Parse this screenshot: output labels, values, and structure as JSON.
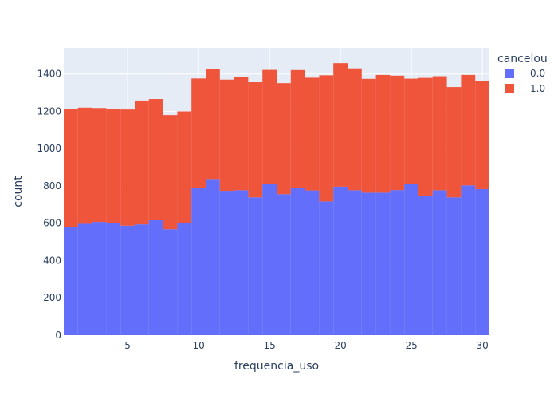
{
  "chart_data": {
    "type": "bar",
    "barmode": "stack",
    "xlabel": "frequencia_uso",
    "ylabel": "count",
    "xlim": [
      0.5,
      30.5
    ],
    "ylim": [
      0,
      1540
    ],
    "x_ticks": [
      5,
      10,
      15,
      20,
      25,
      30
    ],
    "y_ticks": [
      0,
      200,
      400,
      600,
      800,
      1000,
      1200,
      1400
    ],
    "grid": true,
    "legend": {
      "title": "cancelou",
      "position": "top-right"
    },
    "categories": [
      1,
      2,
      3,
      4,
      5,
      6,
      7,
      8,
      9,
      10,
      11,
      12,
      13,
      14,
      15,
      16,
      17,
      18,
      19,
      20,
      21,
      22,
      23,
      24,
      25,
      26,
      27,
      28,
      29,
      30
    ],
    "series": [
      {
        "name": "0.0",
        "color": "#636efa",
        "values": [
          580,
          597,
          607,
          600,
          587,
          594,
          616,
          568,
          602,
          790,
          837,
          774,
          777,
          739,
          812,
          756,
          789,
          776,
          717,
          796,
          777,
          764,
          764,
          778,
          810,
          745,
          777,
          739,
          803,
          783
        ]
      },
      {
        "name": "1.0",
        "color": "#ef553b",
        "values": [
          632,
          623,
          611,
          614,
          623,
          664,
          650,
          612,
          598,
          586,
          589,
          596,
          605,
          617,
          610,
          595,
          632,
          604,
          676,
          662,
          653,
          610,
          631,
          613,
          565,
          634,
          611,
          591,
          592,
          580
        ]
      }
    ]
  }
}
